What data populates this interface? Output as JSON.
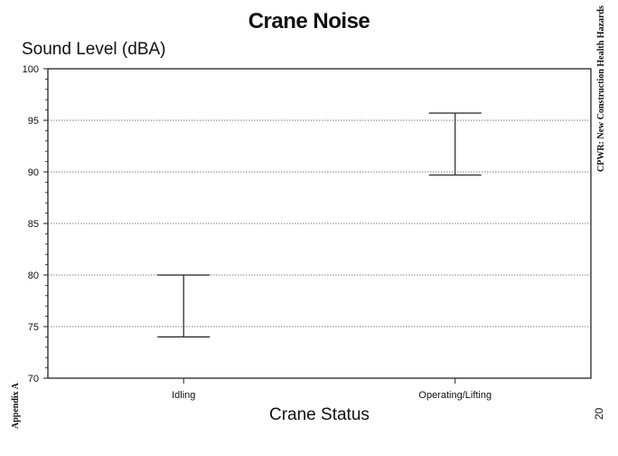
{
  "chart_data": {
    "type": "range",
    "title": "Crane Noise",
    "ylabel": "Sound Level (dBA)",
    "xlabel": "Crane Status",
    "ylim": [
      70,
      100
    ],
    "yticks": [
      "70",
      "75",
      "80",
      "85",
      "90",
      "95",
      "100"
    ],
    "categories": [
      "Idling",
      "Operating/Lifting"
    ],
    "ranges": [
      {
        "category": "Idling",
        "low": 74,
        "high": 80
      },
      {
        "category": "Operating/Lifting",
        "low": 89.7,
        "high": 95.7
      }
    ],
    "grid": true
  },
  "page": {
    "side_note_right": "CPWR: New Construction Health Hazards",
    "side_note_left": "Appendix A",
    "page_number": "20"
  }
}
